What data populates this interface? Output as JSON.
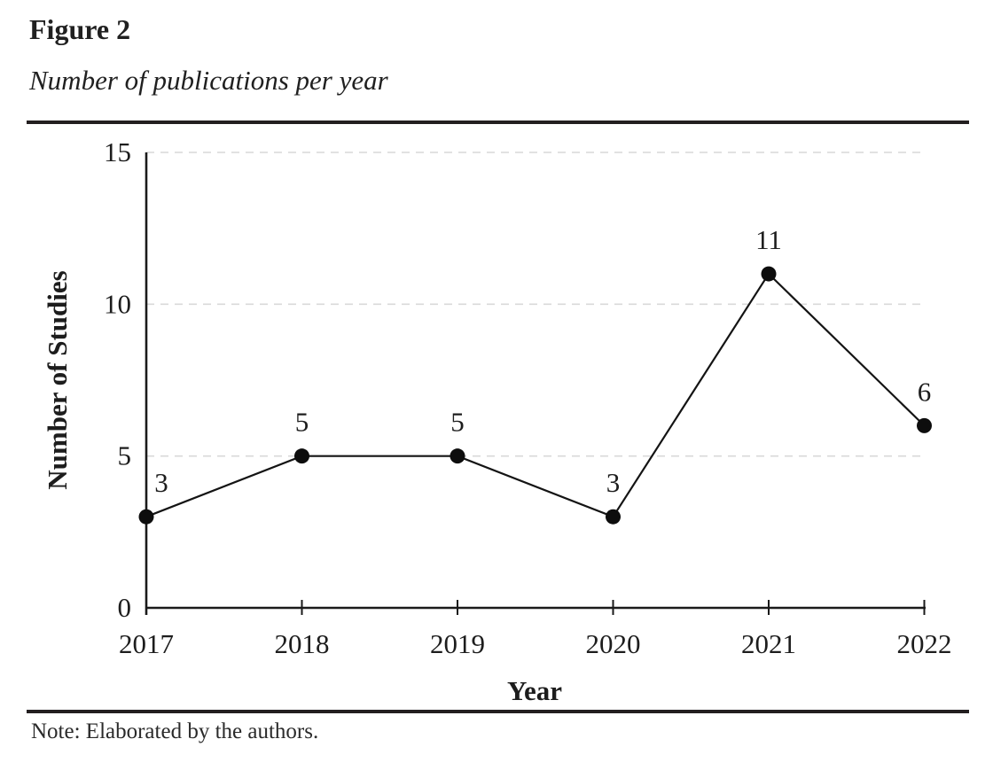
{
  "figure": {
    "label": "Figure 2",
    "caption": "Number of publications per year"
  },
  "note": "Note: Elaborated by the authors.",
  "chart_data": {
    "type": "line",
    "title": "Number of publications per year",
    "categories": [
      "2017",
      "2018",
      "2019",
      "2020",
      "2021",
      "2022"
    ],
    "values": [
      3,
      5,
      5,
      3,
      11,
      6
    ],
    "data_labels": [
      "3",
      "5",
      "5",
      "3",
      "11",
      "6"
    ],
    "xlabel": "Year",
    "ylabel": "Number of Studies",
    "ylim": [
      0,
      15
    ],
    "yticks": [
      0,
      5,
      10,
      15
    ],
    "grid": "horizontal dashed gridlines at 5, 10, 15",
    "legend": "none",
    "marker": "filled-circle",
    "colors": {
      "line": "#141414",
      "marker": "#0d0d0d",
      "gridline": "#d9d9d9",
      "axis": "#1a1a1a",
      "text": "#1d1d1d"
    }
  }
}
